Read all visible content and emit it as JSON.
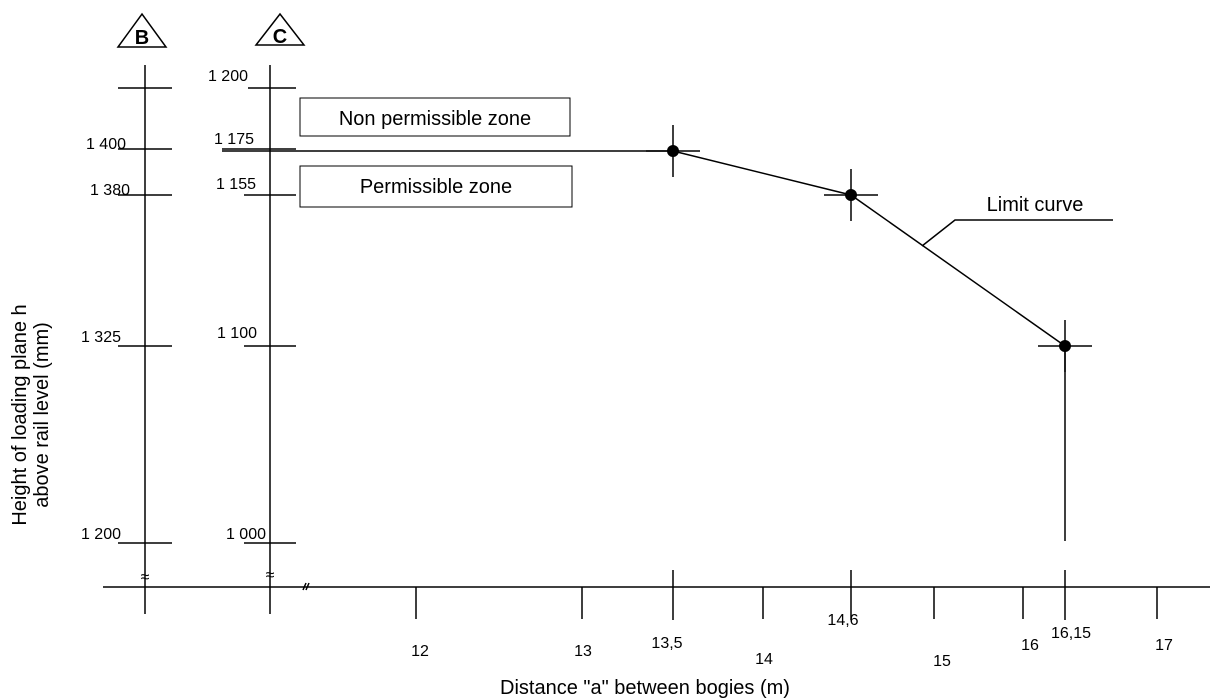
{
  "chart_data": {
    "type": "line",
    "title": "",
    "xlabel": "Distance \"a\" between bogies (m)",
    "ylabel_line1": "Height of loading plane h",
    "ylabel_line2": "above rail level (mm)",
    "x_ticks": [
      "12",
      "13",
      "13,5",
      "14",
      "14,6",
      "15",
      "16",
      "16,15",
      "17"
    ],
    "axis_B": {
      "marker": "B",
      "ticks": [
        {
          "label": "1 400",
          "value": 1400
        },
        {
          "label": "1 380",
          "value": 1380
        },
        {
          "label": "1 325",
          "value": 1325
        },
        {
          "label": "1 200",
          "value": 1200
        }
      ]
    },
    "axis_C": {
      "marker": "C",
      "ticks": [
        {
          "label": "1 200",
          "value": 1200
        },
        {
          "label": "1 175",
          "value": 1175
        },
        {
          "label": "1 155",
          "value": 1155
        },
        {
          "label": "1 100",
          "value": 1100
        },
        {
          "label": "1 000",
          "value": 1000
        }
      ]
    },
    "series": [
      {
        "name": "Limit curve",
        "x": [
          13.5,
          14.6,
          16.15
        ],
        "y_C": [
          1175,
          1155,
          1100
        ],
        "y_B": [
          1400,
          1380,
          1325
        ]
      }
    ],
    "zones": {
      "upper": "Non permissible zone",
      "lower": "Permissible zone"
    },
    "axis_break": "≈"
  }
}
